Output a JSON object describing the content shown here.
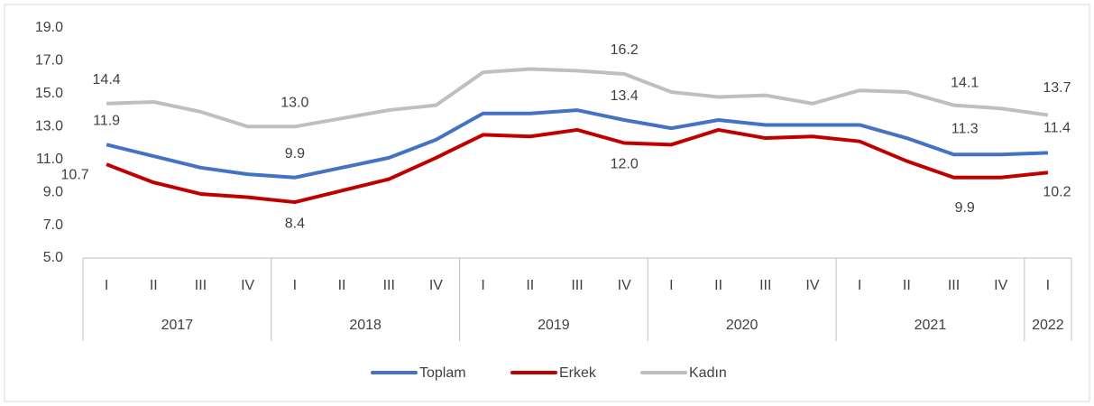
{
  "chart_data": {
    "type": "line",
    "category_groups": [
      {
        "label": "2017",
        "categories": [
          "I",
          "II",
          "III",
          "IV"
        ]
      },
      {
        "label": "2018",
        "categories": [
          "I",
          "II",
          "III",
          "IV"
        ]
      },
      {
        "label": "2019",
        "categories": [
          "I",
          "II",
          "III",
          "IV"
        ]
      },
      {
        "label": "2020",
        "categories": [
          "I",
          "II",
          "III",
          "IV"
        ]
      },
      {
        "label": "2021",
        "categories": [
          "I",
          "II",
          "III",
          "IV"
        ]
      },
      {
        "label": "2022",
        "categories": [
          "I"
        ]
      }
    ],
    "series": [
      {
        "name": "Toplam",
        "color": "#4472c4",
        "values": [
          11.9,
          11.2,
          10.5,
          10.1,
          9.9,
          10.5,
          11.1,
          12.2,
          13.8,
          13.8,
          14.0,
          13.4,
          12.9,
          13.4,
          13.1,
          13.1,
          13.1,
          12.3,
          11.3,
          11.3,
          11.4
        ],
        "value_labels": [
          "11.9",
          null,
          null,
          null,
          "9.9",
          null,
          null,
          null,
          null,
          null,
          null,
          "13.4",
          null,
          null,
          null,
          null,
          null,
          null,
          null,
          "11.3",
          "11.4"
        ]
      },
      {
        "name": "Erkek",
        "color": "#c00000",
        "values": [
          10.7,
          9.6,
          8.9,
          8.7,
          8.4,
          9.1,
          9.8,
          11.1,
          12.5,
          12.4,
          12.8,
          12.0,
          11.9,
          12.8,
          12.3,
          12.4,
          12.1,
          10.9,
          9.9,
          9.9,
          10.2
        ],
        "value_labels": [
          "10.7",
          null,
          null,
          null,
          "8.4",
          null,
          null,
          null,
          null,
          null,
          null,
          "12.0",
          null,
          null,
          null,
          null,
          null,
          null,
          null,
          "9.9",
          "10.2"
        ]
      },
      {
        "name": "Kadın",
        "color": "#bfbfbf",
        "values": [
          14.4,
          14.5,
          13.9,
          13.0,
          13.0,
          13.5,
          14.0,
          14.3,
          16.3,
          16.5,
          16.4,
          16.2,
          15.1,
          14.8,
          14.9,
          14.4,
          15.2,
          15.1,
          14.3,
          14.1,
          13.7
        ],
        "value_labels": [
          "14.4",
          null,
          null,
          null,
          "13.0",
          null,
          null,
          null,
          null,
          null,
          null,
          "16.2",
          null,
          null,
          null,
          null,
          null,
          null,
          null,
          "14.1",
          "13.7"
        ]
      }
    ],
    "ylim": [
      5,
      19
    ],
    "yticks": [
      {
        "value": 5,
        "label": "5.0"
      },
      {
        "value": 7,
        "label": "7.0"
      },
      {
        "value": 9,
        "label": "9.0"
      },
      {
        "value": 11,
        "label": "11.0"
      },
      {
        "value": 13,
        "label": "13.0"
      },
      {
        "value": 15,
        "label": "15.0"
      },
      {
        "value": 17,
        "label": "17.0"
      },
      {
        "value": 19,
        "label": "19.0"
      }
    ],
    "grid": false,
    "legend": "bottom"
  }
}
